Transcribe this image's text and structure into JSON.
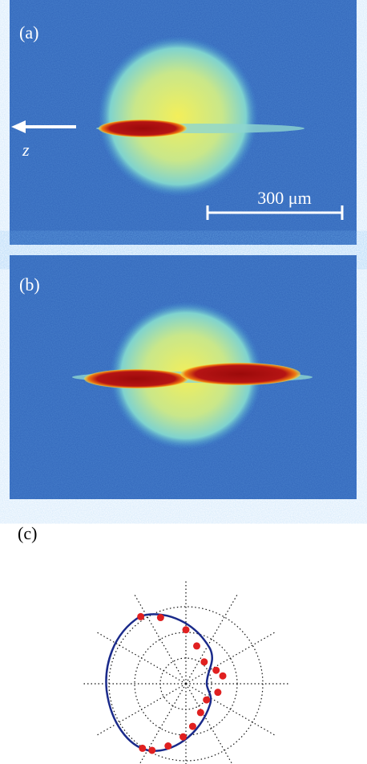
{
  "panels": [
    {
      "label": "(a)",
      "axis_label": "z",
      "scale_bar": "300 μm"
    },
    {
      "label": "(b)"
    },
    {
      "label": "(c)"
    }
  ],
  "polar": {
    "theta": [
      124,
      111,
      90,
      74,
      50,
      24,
      12,
      345,
      322,
      297,
      279,
      267,
      254,
      243,
      236
    ],
    "r": [
      1.05,
      0.92,
      0.7,
      0.51,
      0.37,
      0.43,
      0.49,
      0.43,
      0.34,
      0.42,
      0.56,
      0.69,
      0.84,
      0.97,
      1.01
    ],
    "color": "#e02020"
  }
}
